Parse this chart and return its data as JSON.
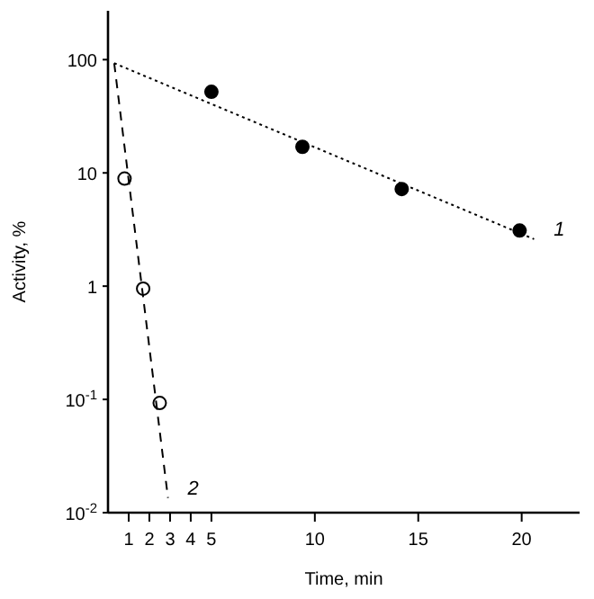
{
  "chart_data": {
    "type": "scatter",
    "xlabel": "Time, min",
    "ylabel": "Activity, %",
    "log": "y",
    "grid": false,
    "xlim": [
      0,
      22.8
    ],
    "xticks": [
      1,
      2,
      3,
      4,
      5,
      10,
      15,
      20
    ],
    "ylim": [
      0.01,
      270
    ],
    "yticks": [
      {
        "value": 0.01,
        "label": "10$^{-2}$"
      },
      {
        "value": 0.1,
        "label": "10$^{-1}$"
      },
      1,
      10,
      100
    ],
    "series": [
      {
        "marker": "circle",
        "color": "#000000",
        "x": [
          5,
          9.4,
          14.2,
          19.9
        ],
        "values": [
          52,
          17,
          7.2,
          3.1
        ]
      },
      {
        "name": "1",
        "type": "line",
        "marker": "none",
        "line_style": "dotted",
        "color": "#000000",
        "x": [
          0.3,
          20.6
        ],
        "values": [
          93,
          2.6
        ]
      },
      {
        "marker": "circle",
        "color": "#ffffff",
        "x": [
          0.8,
          1.7,
          2.5
        ],
        "values": [
          8.9,
          0.95,
          0.093
        ]
      },
      {
        "name": "2",
        "type": "line",
        "marker": "none",
        "line_style": "dashed",
        "color": "#000000",
        "x": [
          0.3,
          2.9
        ],
        "values": [
          93,
          0.0135
        ]
      }
    ]
  }
}
